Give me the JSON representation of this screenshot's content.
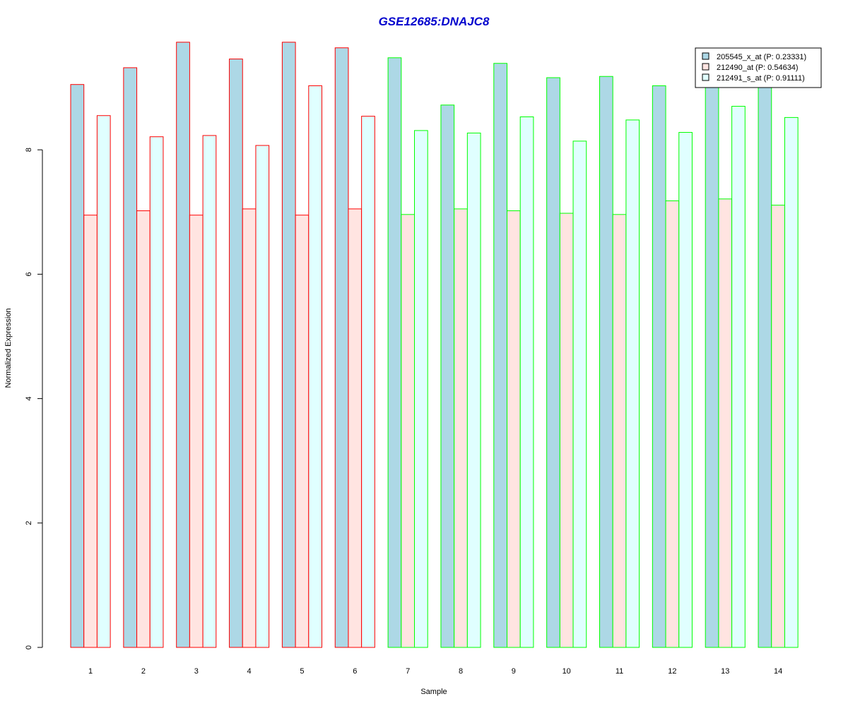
{
  "chart_data": {
    "type": "bar",
    "title": "GSE12685:DNAJC8",
    "xlabel": "Sample",
    "ylabel": "Normalized Expression",
    "categories": [
      "1",
      "2",
      "3",
      "4",
      "5",
      "6",
      "7",
      "8",
      "9",
      "10",
      "11",
      "12",
      "13",
      "14"
    ],
    "ylim": [
      0,
      10
    ],
    "yticks": [
      "0",
      "2",
      "4",
      "6",
      "8"
    ],
    "grid": false,
    "legend_position": "top-right",
    "series": [
      {
        "name": "205545_x_at (P: 0.23331)",
        "fill": "#add8e6",
        "values": [
          9.05,
          9.32,
          9.73,
          9.46,
          9.73,
          9.64,
          9.48,
          8.72,
          9.39,
          9.16,
          9.18,
          9.03,
          9.02,
          9.07
        ]
      },
      {
        "name": "212490_at (P: 0.54634)",
        "fill": "#ffe4e1",
        "values": [
          6.95,
          7.02,
          6.95,
          7.05,
          6.95,
          7.05,
          6.96,
          7.05,
          7.02,
          6.98,
          6.96,
          7.18,
          7.21,
          7.11
        ]
      },
      {
        "name": "212491_s_at (P: 0.91111)",
        "fill": "#e0ffff",
        "values": [
          8.55,
          8.21,
          8.23,
          8.07,
          9.03,
          8.54,
          8.31,
          8.27,
          8.53,
          8.14,
          8.48,
          8.28,
          8.7,
          8.52
        ]
      }
    ],
    "group_border_colors": [
      "#ff0000",
      "#ff0000",
      "#ff0000",
      "#ff0000",
      "#ff0000",
      "#ff0000",
      "#00ff00",
      "#00ff00",
      "#00ff00",
      "#00ff00",
      "#00ff00",
      "#00ff00",
      "#00ff00",
      "#00ff00"
    ],
    "title_color": "#0000cd"
  }
}
